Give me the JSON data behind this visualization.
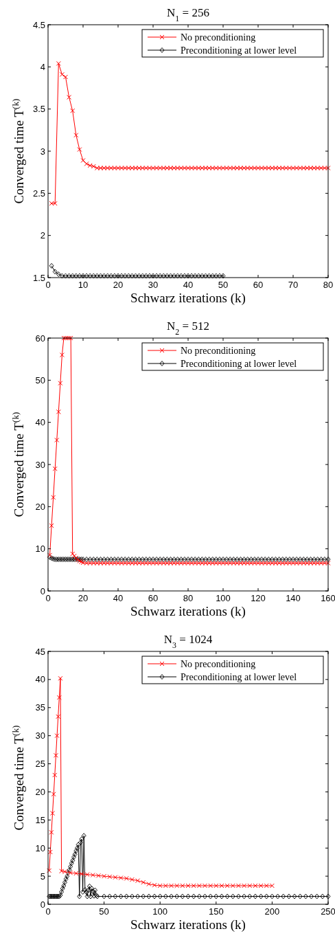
{
  "chart_data": [
    {
      "type": "line",
      "title": "N$_{1}$ = 256",
      "xlabel": "Schwarz iterations (k)",
      "ylabel": "Converged time T$^{(k)}$",
      "xlim": [
        0,
        80
      ],
      "xticks": [
        0,
        10,
        20,
        30,
        40,
        50,
        60,
        70,
        80
      ],
      "ylim": [
        1.5,
        4.5
      ],
      "yticks": [
        1.5,
        2,
        2.5,
        3,
        3.5,
        4,
        4.5
      ],
      "grid": false,
      "legend": "top right",
      "series": [
        {
          "name": "No preconditioning",
          "color": "#ff0000",
          "marker": "cross",
          "x": [
            1,
            2,
            3,
            4,
            5,
            6,
            7,
            8,
            9,
            10,
            11,
            12,
            13,
            14,
            15,
            16,
            17,
            18,
            19,
            20,
            21,
            22,
            23,
            24,
            25,
            26,
            27,
            28,
            29,
            30,
            31,
            32,
            33,
            34,
            35,
            36,
            37,
            38,
            39,
            40,
            41,
            42,
            43,
            44,
            45,
            46,
            47,
            48,
            49,
            50,
            51,
            52,
            53,
            54,
            55,
            56,
            57,
            58,
            59,
            60,
            61,
            62,
            63,
            64,
            65,
            66,
            67,
            68,
            69,
            70,
            71,
            72,
            73,
            74,
            75,
            76,
            77,
            78,
            79,
            80
          ],
          "values": [
            2.38,
            2.38,
            4.04,
            3.91,
            3.88,
            3.64,
            3.48,
            3.19,
            3.02,
            2.89,
            2.85,
            2.83,
            2.82,
            2.8,
            2.8,
            2.8,
            2.8,
            2.8,
            2.8,
            2.8,
            2.8,
            2.8,
            2.8,
            2.8,
            2.8,
            2.8,
            2.8,
            2.8,
            2.8,
            2.8,
            2.8,
            2.8,
            2.8,
            2.8,
            2.8,
            2.8,
            2.8,
            2.8,
            2.8,
            2.8,
            2.8,
            2.8,
            2.8,
            2.8,
            2.8,
            2.8,
            2.8,
            2.8,
            2.8,
            2.8,
            2.8,
            2.8,
            2.8,
            2.8,
            2.8,
            2.8,
            2.8,
            2.8,
            2.8,
            2.8,
            2.8,
            2.8,
            2.8,
            2.8,
            2.8,
            2.8,
            2.8,
            2.8,
            2.8,
            2.8,
            2.8,
            2.8,
            2.8,
            2.8,
            2.8,
            2.8,
            2.8,
            2.8,
            2.8,
            2.8
          ]
        },
        {
          "name": "Preconditioning at lower level",
          "color": "#000000",
          "marker": "diamond",
          "x": [
            1,
            2,
            3,
            4,
            5,
            6,
            7,
            8,
            9,
            10,
            11,
            12,
            13,
            14,
            15,
            16,
            17,
            18,
            19,
            20,
            21,
            22,
            23,
            24,
            25,
            26,
            27,
            28,
            29,
            30,
            31,
            32,
            33,
            34,
            35,
            36,
            37,
            38,
            39,
            40,
            41,
            42,
            43,
            44,
            45,
            46,
            47,
            48,
            49,
            50
          ],
          "values": [
            1.64,
            1.57,
            1.54,
            1.52,
            1.52,
            1.52,
            1.52,
            1.52,
            1.52,
            1.52,
            1.52,
            1.52,
            1.52,
            1.52,
            1.52,
            1.52,
            1.52,
            1.52,
            1.52,
            1.52,
            1.52,
            1.52,
            1.52,
            1.52,
            1.52,
            1.52,
            1.52,
            1.52,
            1.52,
            1.52,
            1.52,
            1.52,
            1.52,
            1.52,
            1.52,
            1.52,
            1.52,
            1.52,
            1.52,
            1.52,
            1.52,
            1.52,
            1.52,
            1.52,
            1.52,
            1.52,
            1.52,
            1.52,
            1.52,
            1.52
          ]
        }
      ]
    },
    {
      "type": "line",
      "title": "N$_{2}$ = 512",
      "xlabel": "Schwarz iterations (k)",
      "ylabel": "Converged time T$^{(k)}$",
      "xlim": [
        0,
        160
      ],
      "xticks": [
        0,
        20,
        40,
        60,
        80,
        100,
        120,
        140,
        160
      ],
      "ylim": [
        0,
        60
      ],
      "yticks": [
        0,
        10,
        20,
        30,
        40,
        50,
        60
      ],
      "grid": false,
      "legend": "top right",
      "series": [
        {
          "name": "No preconditioning",
          "color": "#ff0000",
          "marker": "cross",
          "x": [
            1,
            2,
            3,
            4,
            5,
            6,
            7,
            8,
            9,
            10,
            11,
            12,
            13,
            14,
            15,
            16,
            17,
            18,
            19,
            20,
            22,
            24,
            26,
            28,
            30,
            32,
            34,
            36,
            38,
            40,
            42,
            44,
            46,
            48,
            50,
            52,
            54,
            56,
            58,
            60,
            62,
            64,
            66,
            68,
            70,
            72,
            74,
            76,
            78,
            80,
            82,
            84,
            86,
            88,
            90,
            92,
            94,
            96,
            98,
            100,
            102,
            104,
            106,
            108,
            110,
            112,
            114,
            116,
            118,
            120,
            122,
            124,
            126,
            128,
            130,
            132,
            134,
            136,
            138,
            140,
            142,
            144,
            146,
            148,
            150,
            152,
            154,
            156,
            158,
            160
          ],
          "values": [
            8.5,
            15.5,
            22.2,
            29,
            35.8,
            42.5,
            49.3,
            56,
            60,
            60,
            60,
            60,
            60,
            8.8,
            8.3,
            7.8,
            7.4,
            7.1,
            6.9,
            6.7,
            6.6,
            6.6,
            6.6,
            6.6,
            6.6,
            6.6,
            6.6,
            6.6,
            6.6,
            6.6,
            6.6,
            6.6,
            6.6,
            6.6,
            6.6,
            6.6,
            6.6,
            6.6,
            6.6,
            6.6,
            6.6,
            6.6,
            6.6,
            6.6,
            6.6,
            6.6,
            6.6,
            6.6,
            6.6,
            6.6,
            6.6,
            6.6,
            6.6,
            6.6,
            6.6,
            6.6,
            6.6,
            6.6,
            6.6,
            6.6,
            6.6,
            6.6,
            6.6,
            6.6,
            6.6,
            6.6,
            6.6,
            6.6,
            6.6,
            6.6,
            6.6,
            6.6,
            6.6,
            6.6,
            6.6,
            6.6,
            6.6,
            6.6,
            6.6,
            6.6,
            6.6,
            6.6,
            6.6,
            6.6,
            6.6,
            6.6,
            6.6,
            6.6,
            6.6,
            6.6
          ]
        },
        {
          "name": "Preconditioning at lower level",
          "color": "#000000",
          "marker": "diamond",
          "x": [
            1,
            2,
            3,
            4,
            5,
            6,
            7,
            8,
            9,
            10,
            11,
            12,
            13,
            14,
            15,
            16,
            17,
            18,
            19,
            20,
            22,
            24,
            26,
            28,
            30,
            32,
            34,
            36,
            38,
            40,
            42,
            44,
            46,
            48,
            50,
            52,
            54,
            56,
            58,
            60,
            62,
            64,
            66,
            68,
            70,
            72,
            74,
            76,
            78,
            80,
            82,
            84,
            86,
            88,
            90,
            92,
            94,
            96,
            98,
            100,
            102,
            104,
            106,
            108,
            110,
            112,
            114,
            116,
            118,
            120,
            122,
            124,
            126,
            128,
            130,
            132,
            134,
            136,
            138,
            140,
            142,
            144,
            146,
            148,
            150,
            152,
            154,
            156,
            158,
            160
          ],
          "values": [
            8.0,
            7.8,
            7.6,
            7.5,
            7.5,
            7.5,
            7.5,
            7.5,
            7.5,
            7.5,
            7.5,
            7.5,
            7.5,
            7.5,
            7.5,
            7.5,
            7.5,
            7.5,
            7.5,
            7.5,
            7.5,
            7.5,
            7.5,
            7.5,
            7.5,
            7.5,
            7.5,
            7.5,
            7.5,
            7.5,
            7.5,
            7.5,
            7.5,
            7.5,
            7.5,
            7.5,
            7.5,
            7.5,
            7.5,
            7.5,
            7.5,
            7.5,
            7.5,
            7.5,
            7.5,
            7.5,
            7.5,
            7.5,
            7.5,
            7.5,
            7.5,
            7.5,
            7.5,
            7.5,
            7.5,
            7.5,
            7.5,
            7.5,
            7.5,
            7.5,
            7.5,
            7.5,
            7.5,
            7.5,
            7.5,
            7.5,
            7.5,
            7.5,
            7.5,
            7.5,
            7.5,
            7.5,
            7.5,
            7.5,
            7.5,
            7.5,
            7.5,
            7.5,
            7.5,
            7.5,
            7.5,
            7.5,
            7.5,
            7.5,
            7.5,
            7.5,
            7.5,
            7.5,
            7.5,
            7.5
          ]
        }
      ]
    },
    {
      "type": "line",
      "title": "N$_{3}$ = 1024",
      "xlabel": "Schwarz iterations (k)",
      "ylabel": "Converged time T$^{(k)}$",
      "xlim": [
        0,
        250
      ],
      "xticks": [
        0,
        50,
        100,
        150,
        200,
        250
      ],
      "ylim": [
        0,
        45
      ],
      "yticks": [
        0,
        5,
        10,
        15,
        20,
        25,
        30,
        35,
        40,
        45
      ],
      "grid": false,
      "legend": "top right",
      "series": [
        {
          "name": "No preconditioning",
          "color": "#ff0000",
          "marker": "cross",
          "x": [
            1,
            2,
            3,
            4,
            5,
            6,
            7,
            8,
            9,
            10,
            11,
            12,
            15,
            20,
            25,
            30,
            35,
            40,
            45,
            50,
            55,
            60,
            65,
            70,
            75,
            80,
            85,
            90,
            95,
            100,
            105,
            110,
            115,
            120,
            125,
            130,
            135,
            140,
            145,
            150,
            155,
            160,
            165,
            170,
            175,
            180,
            185,
            190,
            195,
            200
          ],
          "values": [
            6,
            9.3,
            12.8,
            16.2,
            19.6,
            23,
            26.5,
            30,
            33.4,
            36.8,
            40.2,
            5.9,
            5.8,
            5.6,
            5.5,
            5.4,
            5.3,
            5.2,
            5.1,
            5.0,
            4.9,
            4.8,
            4.7,
            4.6,
            4.4,
            4.2,
            3.9,
            3.6,
            3.4,
            3.3,
            3.3,
            3.3,
            3.3,
            3.3,
            3.3,
            3.3,
            3.3,
            3.3,
            3.3,
            3.3,
            3.3,
            3.3,
            3.3,
            3.3,
            3.3,
            3.3,
            3.3,
            3.3,
            3.3,
            3.3
          ]
        },
        {
          "name": "Preconditioning at lower level",
          "color": "#000000",
          "marker": "diamond",
          "x": [
            1,
            2,
            3,
            4,
            5,
            6,
            7,
            8,
            9,
            10,
            11,
            12,
            13,
            14,
            15,
            16,
            17,
            18,
            19,
            20,
            21,
            22,
            23,
            24,
            25,
            26,
            27,
            28,
            29,
            30,
            31,
            32,
            33,
            34,
            35,
            36,
            37,
            38,
            39,
            40,
            41,
            42,
            43,
            44,
            50,
            55,
            60,
            65,
            70,
            75,
            80,
            85,
            90,
            95,
            100,
            105,
            110,
            115,
            120,
            125,
            130,
            135,
            140,
            145,
            150,
            155,
            160,
            165,
            170,
            175,
            180,
            185,
            190,
            195,
            200,
            205,
            210,
            215,
            220,
            225,
            230,
            235,
            240,
            245,
            250
          ],
          "values": [
            1.4,
            1.4,
            1.4,
            1.4,
            1.4,
            1.4,
            1.4,
            1.4,
            1.4,
            1.4,
            1.6,
            2.2,
            2.8,
            3.3,
            3.9,
            4.5,
            5.0,
            5.6,
            6.1,
            6.7,
            7.3,
            7.8,
            8.4,
            8.9,
            9.5,
            10.0,
            10.6,
            1.4,
            11.0,
            11.6,
            2.2,
            12.2,
            2.6,
            2.2,
            1.4,
            2.5,
            3.2,
            1.4,
            2.8,
            2.3,
            1.5,
            2.5,
            1.6,
            1.4,
            1.4,
            1.4,
            1.4,
            1.4,
            1.4,
            1.4,
            1.4,
            1.4,
            1.4,
            1.4,
            1.4,
            1.4,
            1.4,
            1.4,
            1.4,
            1.4,
            1.4,
            1.4,
            1.4,
            1.4,
            1.4,
            1.4,
            1.4,
            1.4,
            1.4,
            1.4,
            1.4,
            1.4,
            1.4,
            1.4,
            1.4,
            1.4,
            1.4,
            1.4,
            1.4,
            1.4,
            1.4,
            1.4,
            1.4,
            1.4,
            1.4
          ]
        }
      ]
    }
  ]
}
